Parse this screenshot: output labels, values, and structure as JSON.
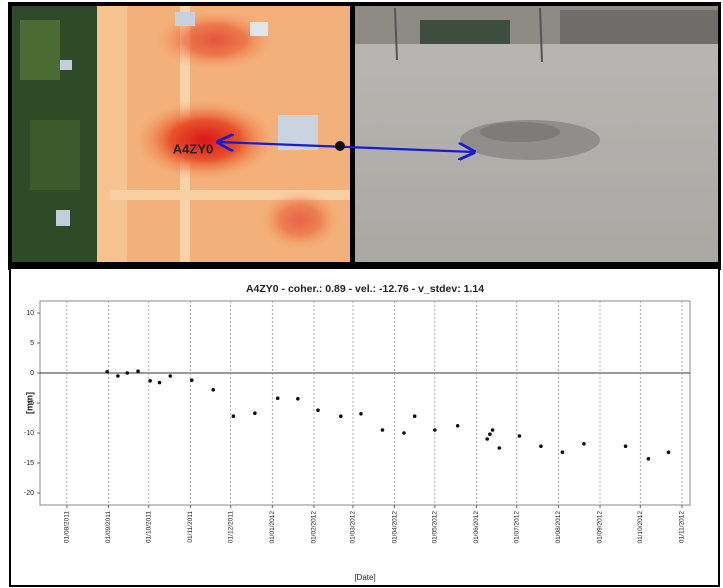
{
  "map_label": "A4ZY0",
  "chart_data": {
    "type": "scatter",
    "title": "A4ZY0 - coher.: 0.89 - vel.: -12.76 - v_stdev: 1.14",
    "x_label": "[Date]",
    "y_label": "[mm]",
    "color": "#111111",
    "grid": "x",
    "xlim": [
      "2011-07-12",
      "2012-11-07"
    ],
    "xticks": [
      {
        "value": "2011-08-01",
        "label": "01/08/2011"
      },
      {
        "value": "2011-09-01",
        "label": "01/09/2011"
      },
      {
        "value": "2011-10-01",
        "label": "01/10/2011"
      },
      {
        "value": "2011-11-01",
        "label": "01/11/2011"
      },
      {
        "value": "2011-12-01",
        "label": "01/12/2011"
      },
      {
        "value": "2012-01-01",
        "label": "01/01/2012"
      },
      {
        "value": "2012-02-01",
        "label": "01/02/2012"
      },
      {
        "value": "2012-03-01",
        "label": "01/03/2012"
      },
      {
        "value": "2012-04-01",
        "label": "01/04/2012"
      },
      {
        "value": "2012-05-01",
        "label": "01/05/2012"
      },
      {
        "value": "2012-06-01",
        "label": "01/06/2012"
      },
      {
        "value": "2012-07-01",
        "label": "01/07/2012"
      },
      {
        "value": "2012-08-01",
        "label": "01/08/2012"
      },
      {
        "value": "2012-09-01",
        "label": "01/09/2012"
      },
      {
        "value": "2012-10-01",
        "label": "01/10/2012"
      },
      {
        "value": "2012-11-01",
        "label": "01/11/2012"
      }
    ],
    "ylim": [
      -22,
      12
    ],
    "yticks": [
      10,
      5,
      0,
      -5,
      -10,
      -15,
      -20
    ],
    "x": [
      "2011-08-31",
      "2011-09-08",
      "2011-09-15",
      "2011-09-23",
      "2011-10-02",
      "2011-10-09",
      "2011-10-17",
      "2011-11-02",
      "2011-11-18",
      "2011-12-03",
      "2011-12-19",
      "2012-01-05",
      "2012-01-20",
      "2012-02-04",
      "2012-02-21",
      "2012-03-07",
      "2012-03-23",
      "2012-04-08",
      "2012-04-16",
      "2012-05-01",
      "2012-05-18",
      "2012-06-09",
      "2012-06-11",
      "2012-06-13",
      "2012-06-18",
      "2012-07-03",
      "2012-07-19",
      "2012-08-04",
      "2012-08-20",
      "2012-09-20",
      "2012-10-07",
      "2012-10-22"
    ],
    "values": [
      0.2,
      -0.5,
      0,
      0.3,
      -1.3,
      -1.6,
      -0.5,
      -1.2,
      -2.8,
      -7.2,
      -6.7,
      -4.2,
      -4.3,
      -6.2,
      -7.2,
      -6.8,
      -9.5,
      -10,
      -7.2,
      -9.5,
      -8.8,
      -11,
      -10.2,
      -9.5,
      -12.5,
      -10.5,
      -12.2,
      -13.2,
      -11.8,
      -12.2,
      -14.3,
      -13.2
    ]
  }
}
